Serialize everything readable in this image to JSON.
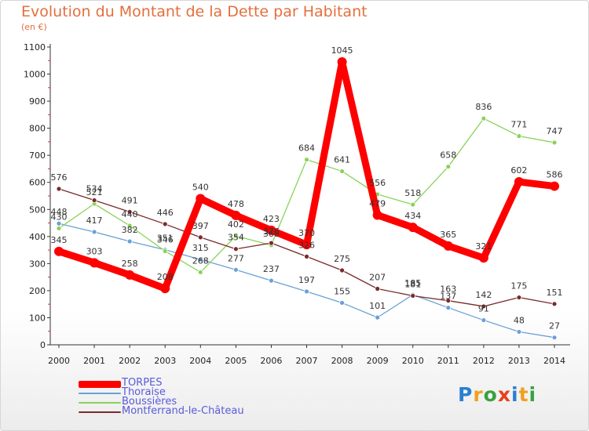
{
  "header": {
    "title": "Evolution du Montant de la Dette par Habitant",
    "unit": "(en €)"
  },
  "logo": {
    "text": "Proxiti",
    "colors": [
      "#2a7fd1",
      "#f0a020",
      "#3aa040",
      "#e8401c",
      "#2a7fd1",
      "#f0a020",
      "#3aa040"
    ]
  },
  "chart_data": {
    "type": "line",
    "title": "Evolution du Montant de la Dette par Habitant",
    "subtitle": "(en €)",
    "xlabel": "",
    "ylabel": "",
    "x": [
      "2000",
      "2001",
      "2002",
      "2003",
      "2004",
      "2005",
      "2006",
      "2007",
      "2008",
      "2009",
      "2010",
      "2011",
      "2012",
      "2013",
      "2014"
    ],
    "ylim": [
      0,
      1100
    ],
    "yticks": [
      0,
      100,
      200,
      300,
      400,
      500,
      600,
      700,
      800,
      900,
      1000,
      1100
    ],
    "grid": false,
    "legend_position": "bottom-left",
    "series": [
      {
        "name": "TORPES",
        "color": "#ff0000",
        "values": [
          345,
          303,
          258,
          208,
          540,
          478,
          423,
          370,
          1045,
          479,
          434,
          365,
          321,
          602,
          586
        ]
      },
      {
        "name": "Thoraise",
        "color": "#6aa0d6",
        "values": [
          448,
          417,
          382,
          351,
          315,
          277,
          237,
          197,
          155,
          101,
          185,
          137,
          91,
          48,
          27
        ]
      },
      {
        "name": "Boussières",
        "color": "#8ad25a",
        "values": [
          430,
          521,
          440,
          346,
          268,
          402,
          368,
          684,
          641,
          556,
          518,
          658,
          836,
          771,
          747
        ]
      },
      {
        "name": "Montferrand-le-Château",
        "color": "#7a2a2a",
        "values": [
          576,
          534,
          491,
          446,
          397,
          354,
          376,
          326,
          275,
          207,
          181,
          163,
          142,
          175,
          151
        ]
      }
    ]
  }
}
